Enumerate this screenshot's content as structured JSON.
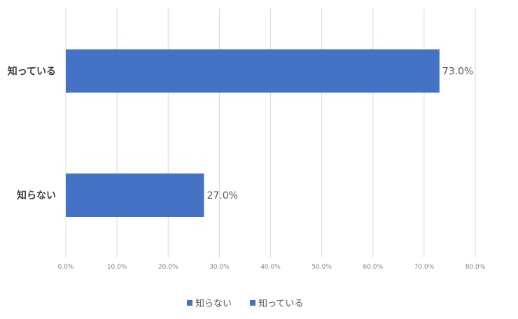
{
  "chart_data": {
    "type": "bar",
    "orientation": "horizontal",
    "categories": [
      "知っている",
      "知らない"
    ],
    "values": [
      73.0,
      27.0
    ],
    "value_labels": [
      "73.0%",
      "27.0%"
    ],
    "xlim": [
      0,
      80
    ],
    "x_ticks": [
      0,
      10,
      20,
      30,
      40,
      50,
      60,
      70,
      80
    ],
    "x_tick_labels": [
      "0.0%",
      "10.0%",
      "20.0%",
      "30.0%",
      "40.0%",
      "50.0%",
      "60.0%",
      "70.0%",
      "80.0%"
    ],
    "grid": "vertical",
    "legend": {
      "position": "bottom",
      "entries": [
        "知らない",
        "知っている"
      ]
    },
    "colors": {
      "bar": "#4472C4",
      "grid": "#d9d9d9"
    }
  }
}
